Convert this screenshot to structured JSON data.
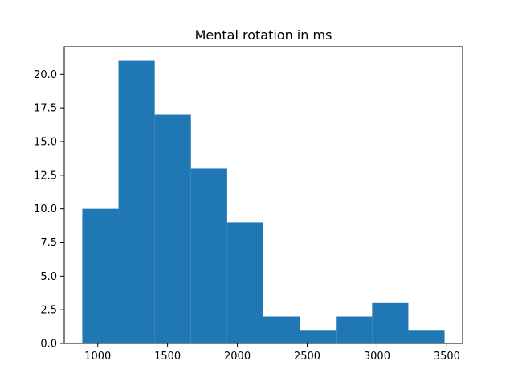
{
  "chart_data": {
    "type": "bar",
    "title": "Mental rotation in ms",
    "xlabel": "",
    "ylabel": "",
    "bin_edges": [
      889,
      1148.5,
      1408,
      1667.5,
      1927,
      2186.5,
      2446,
      2705.5,
      2965,
      3224.5,
      3484
    ],
    "values": [
      10,
      21,
      17,
      13,
      9,
      2,
      1,
      2,
      3,
      1
    ],
    "xlim": [
      760,
      3613
    ],
    "ylim": [
      0,
      22.05
    ],
    "x_ticks": [
      1000,
      1500,
      2000,
      2500,
      3000,
      3500
    ],
    "x_tick_labels": [
      "1000",
      "1500",
      "2000",
      "2500",
      "3000",
      "3500"
    ],
    "y_ticks": [
      0,
      2.5,
      5,
      7.5,
      10,
      12.5,
      15,
      17.5,
      20
    ],
    "y_tick_labels": [
      "0.0",
      "2.5",
      "5.0",
      "7.5",
      "10.0",
      "12.5",
      "15.0",
      "17.5",
      "20.0"
    ],
    "bar_color": "#1f77b4",
    "grid": false,
    "legend": "none"
  }
}
